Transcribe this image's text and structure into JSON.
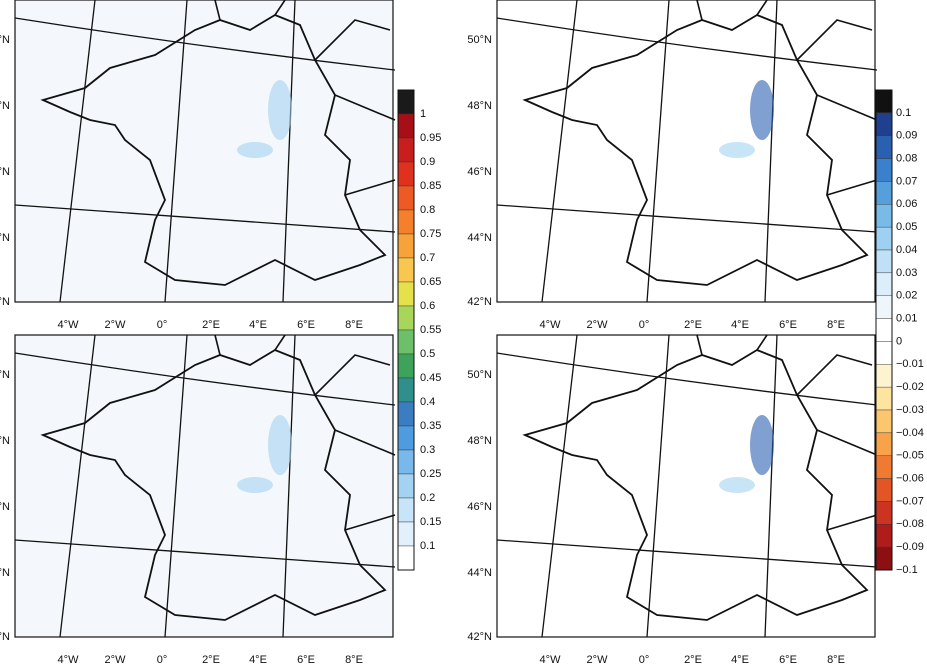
{
  "lat_labels": [
    "50°N",
    "48°N",
    "46°N",
    "44°N",
    "42°N"
  ],
  "lon_labels": [
    "4°W",
    "2°W",
    "0°",
    "2°E",
    "4°E",
    "6°E",
    "8°E"
  ],
  "colorbars": [
    {
      "labels": [
        "1",
        "0.95",
        "0.9",
        "0.85",
        "0.8",
        "0.75",
        "0.7",
        "0.65",
        "0.6",
        "0.55",
        "0.5",
        "0.45",
        "0.4",
        "0.35",
        "0.3",
        "0.25",
        "0.2",
        "0.15",
        "0.1"
      ],
      "colors": [
        "#1a1a1a",
        "#a50f15",
        "#c81e1e",
        "#e0301e",
        "#ee5a24",
        "#f5802c",
        "#f8a33a",
        "#f9c74f",
        "#e6e04a",
        "#a8d65a",
        "#6cc06a",
        "#3ea35a",
        "#2f8f8a",
        "#3a7dc0",
        "#4f9be0",
        "#79b8ea",
        "#a3d2f2",
        "#c8e4f8",
        "#e2f0fb",
        "#ffffff"
      ]
    },
    {
      "labels": [
        "0.1",
        "0.09",
        "0.08",
        "0.07",
        "0.06",
        "0.05",
        "0.04",
        "0.03",
        "0.02",
        "0.01",
        "0",
        "−0.01",
        "−0.02",
        "−0.03",
        "−0.04",
        "−0.05",
        "−0.06",
        "−0.07",
        "−0.08",
        "−0.09",
        "−0.1"
      ],
      "colors": [
        "#111111",
        "#1f3f8f",
        "#2a60b0",
        "#3a80cc",
        "#55a0dc",
        "#78bbe8",
        "#9ed0f1",
        "#bfe0f6",
        "#dceefa",
        "#eef6fc",
        "#ffffff",
        "#ffffff",
        "#fdf3d0",
        "#fde5a0",
        "#fbc66e",
        "#f8a24a",
        "#f07a32",
        "#e35524",
        "#cc3320",
        "#b01c1c",
        "#8c0f12"
      ]
    }
  ]
}
